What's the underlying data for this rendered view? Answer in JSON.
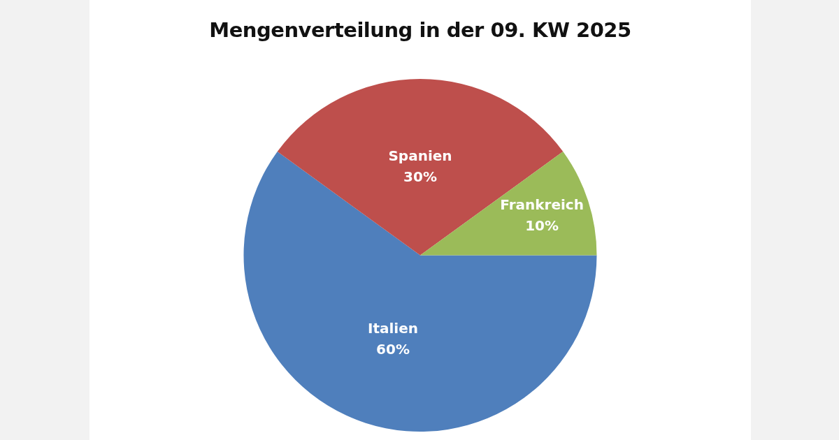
{
  "chart_data": {
    "type": "pie",
    "title": "Mengenverteilung in der 09. KW 2025",
    "categories": [
      "Italien",
      "Spanien",
      "Frankreich"
    ],
    "values": [
      60,
      30,
      10
    ],
    "colors": [
      "#4f7fbc",
      "#be4f4c",
      "#9bbb59"
    ],
    "value_labels": [
      "60%",
      "30%",
      "10%"
    ],
    "legend": false
  }
}
